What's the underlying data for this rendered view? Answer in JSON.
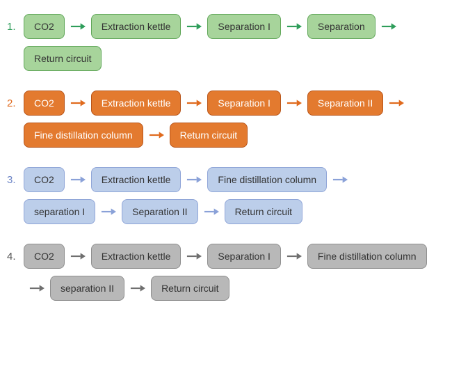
{
  "flows": [
    {
      "label": "1.",
      "label_color": "#2e9d5a",
      "fill": "#a7d49b",
      "border": "#5fa658",
      "arrow_color": "#2e9d5a",
      "text_color": "#333333",
      "rows": [
        {
          "indent": false,
          "items": [
            {
              "t": "node",
              "v": "CO2"
            },
            {
              "t": "arrow"
            },
            {
              "t": "node",
              "v": "Extraction kettle"
            },
            {
              "t": "arrow"
            },
            {
              "t": "node",
              "v": "Separation I"
            },
            {
              "t": "arrow"
            },
            {
              "t": "node",
              "v": "Separation "
            },
            {
              "t": "arrow"
            }
          ]
        },
        {
          "indent": true,
          "items": [
            {
              "t": "node",
              "v": "Return circuit"
            }
          ]
        }
      ]
    },
    {
      "label": "2.",
      "label_color": "#e06a1d",
      "fill": "#e37a2f",
      "border": "#b8551a",
      "arrow_color": "#e06a1d",
      "text_color": "#ffffff",
      "rows": [
        {
          "indent": false,
          "items": [
            {
              "t": "node",
              "v": "CO2"
            },
            {
              "t": "arrow"
            },
            {
              "t": "node",
              "v": "Extraction kettle"
            },
            {
              "t": "arrow"
            },
            {
              "t": "node",
              "v": "Separation I"
            },
            {
              "t": "arrow"
            },
            {
              "t": "node",
              "v": "Separation II"
            },
            {
              "t": "arrow"
            }
          ]
        },
        {
          "indent": true,
          "items": [
            {
              "t": "node",
              "v": "Fine distillation column"
            },
            {
              "t": "arrow"
            },
            {
              "t": "node",
              "v": "Return circuit"
            }
          ]
        }
      ]
    },
    {
      "label": "3.",
      "label_color": "#6f86c7",
      "fill": "#bcceea",
      "border": "#90a6d8",
      "arrow_color": "#8aa1d8",
      "text_color": "#333333",
      "rows": [
        {
          "indent": false,
          "items": [
            {
              "t": "node",
              "v": "CO2"
            },
            {
              "t": "arrow"
            },
            {
              "t": "node",
              "v": "Extraction kettle"
            },
            {
              "t": "arrow"
            },
            {
              "t": "node",
              "v": "Fine distillation column"
            },
            {
              "t": "arrow"
            }
          ]
        },
        {
          "indent": true,
          "items": [
            {
              "t": "node",
              "v": "separation I"
            },
            {
              "t": "arrow"
            },
            {
              "t": "node",
              "v": "Separation II"
            },
            {
              "t": "arrow"
            },
            {
              "t": "node",
              "v": "Return circuit"
            }
          ]
        }
      ]
    },
    {
      "label": "4.",
      "label_color": "#555555",
      "fill": "#b8b8b8",
      "border": "#8f8f8f",
      "arrow_color": "#6f6f6f",
      "text_color": "#333333",
      "rows": [
        {
          "indent": false,
          "items": [
            {
              "t": "node",
              "v": "CO2"
            },
            {
              "t": "arrow"
            },
            {
              "t": "node",
              "v": "Extraction kettle"
            },
            {
              "t": "arrow"
            },
            {
              "t": "node",
              "v": "Separation I"
            },
            {
              "t": "arrow"
            },
            {
              "t": "node",
              "v": "Fine distillation column"
            }
          ]
        },
        {
          "indent": true,
          "items": [
            {
              "t": "arrow"
            },
            {
              "t": "node",
              "v": "separation II"
            },
            {
              "t": "arrow"
            },
            {
              "t": "node",
              "v": "Return circuit"
            }
          ]
        }
      ]
    }
  ]
}
